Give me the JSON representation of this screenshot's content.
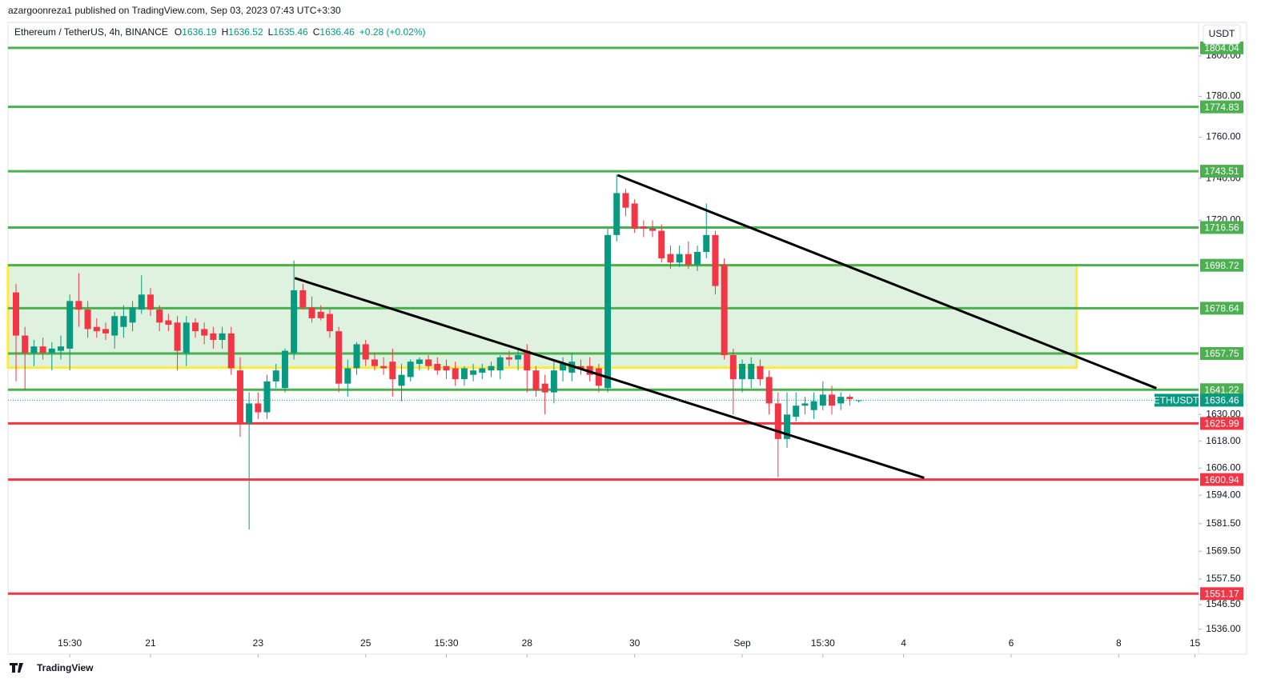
{
  "chart_data": {
    "type": "candlestick",
    "published": "azargoonreza1 published on TradingView.com, Sep 03, 2023 07:43 UTC+3:30",
    "title": "Ethereum / TetherUS, 4h, BINANCE",
    "ohlc_prefixes": [
      "O",
      "H",
      "L",
      "C"
    ],
    "change": "+0.28 (+0.02%)",
    "currency": "USDT",
    "symbol": "ETHUSDT",
    "brand": "TradingView",
    "log_scale": true,
    "grid": false,
    "up_color": "#089981",
    "down_color": "#f23645",
    "xlim": [
      0,
      132.9
    ],
    "ylim": [
      1525.4,
      1816.8
    ],
    "xticks": [
      {
        "value": 7,
        "label": "15:30"
      },
      {
        "value": 16,
        "label": "21"
      },
      {
        "value": 28,
        "label": "23"
      },
      {
        "value": 40,
        "label": "25"
      },
      {
        "value": 49,
        "label": "15:30"
      },
      {
        "value": 58,
        "label": "28"
      },
      {
        "value": 70,
        "label": "30"
      },
      {
        "value": 82,
        "label": "Sep"
      },
      {
        "value": 91,
        "label": "15:30"
      },
      {
        "value": 100,
        "label": "4"
      },
      {
        "value": 112,
        "label": "6"
      },
      {
        "value": 124,
        "label": "8"
      },
      {
        "value": 132.5,
        "label": "15"
      }
    ],
    "yticks": [
      {
        "value": 1800,
        "label": "1800.00"
      },
      {
        "value": 1780,
        "label": "1780.00"
      },
      {
        "value": 1760,
        "label": "1760.00"
      },
      {
        "value": 1740,
        "label": "1740.00"
      },
      {
        "value": 1720,
        "label": "1720.00"
      },
      {
        "value": 1630,
        "label": "1630.00"
      },
      {
        "value": 1618,
        "label": "1618.00"
      },
      {
        "value": 1606,
        "label": "1606.00"
      },
      {
        "value": 1594,
        "label": "1594.00"
      },
      {
        "value": 1581.5,
        "label": "1581.50"
      },
      {
        "value": 1569.5,
        "label": "1569.50"
      },
      {
        "value": 1557.5,
        "label": "1557.50"
      },
      {
        "value": 1546.5,
        "label": "1546.50"
      },
      {
        "value": 1536,
        "label": "1536.00"
      }
    ],
    "levels": [
      {
        "value": 1804.04,
        "color": "#4caf50"
      },
      {
        "value": 1774.83,
        "color": "#4caf50"
      },
      {
        "value": 1743.51,
        "color": "#4caf50"
      },
      {
        "value": 1716.56,
        "color": "#4caf50"
      },
      {
        "value": 1698.72,
        "color": "#4caf50"
      },
      {
        "value": 1678.64,
        "color": "#4caf50"
      },
      {
        "value": 1657.75,
        "color": "#4caf50"
      },
      {
        "value": 1641.22,
        "color": "#4caf50"
      },
      {
        "value": 1625.99,
        "color": "#f23645"
      },
      {
        "value": 1600.94,
        "color": "#f23645"
      },
      {
        "value": 1551.17,
        "color": "#f23645"
      }
    ],
    "box": {
      "x": [
        0.1,
        119.3
      ],
      "y": [
        1651.3,
        1698.72
      ],
      "color": "#ffeb3b"
    },
    "trendlines": [
      {
        "x": [
          68.1,
          128.2
        ],
        "y": [
          1741.6,
          1641.9
        ]
      },
      {
        "x": [
          32.1,
          102.3
        ],
        "y": [
          1692.7,
          1601.7
        ]
      }
    ],
    "x": [
      1,
      2,
      3,
      4,
      5,
      6,
      7,
      8,
      9,
      10,
      11,
      12,
      13,
      14,
      15,
      16,
      17,
      18,
      19,
      20,
      21,
      22,
      23,
      24,
      25,
      26,
      27,
      28,
      29,
      30,
      31,
      32,
      33,
      34,
      35,
      36,
      37,
      38,
      39,
      40,
      41,
      42,
      43,
      44,
      45,
      46,
      47,
      48,
      49,
      50,
      51,
      52,
      53,
      54,
      55,
      56,
      57,
      58,
      59,
      60,
      61,
      62,
      63,
      64,
      65,
      66,
      67,
      68,
      69,
      70,
      71,
      72,
      73,
      74,
      75,
      76,
      77,
      78,
      79,
      80,
      81,
      82,
      83,
      84,
      85,
      86,
      87,
      88,
      89,
      90,
      91,
      92,
      93,
      94,
      95
    ],
    "open": [
      1686,
      1666,
      1658,
      1661,
      1658,
      1659,
      1660,
      1682,
      1678,
      1670,
      1669,
      1666,
      1670,
      1672,
      1678,
      1685,
      1678,
      1673,
      1672,
      1658,
      1672,
      1669,
      1667,
      1664,
      1667,
      1650,
      1626,
      1635,
      1631,
      1645,
      1642,
      1658,
      1687,
      1679,
      1677,
      1676,
      1668,
      1644,
      1651,
      1662,
      1655,
      1652,
      1654,
      1643,
      1647,
      1653,
      1655,
      1653,
      1652,
      1651,
      1646,
      1648,
      1649,
      1650,
      1650,
      1656,
      1655,
      1659,
      1650,
      1644,
      1640,
      1650,
      1649,
      1652,
      1652,
      1651,
      1642,
      1713,
      1733,
      1728,
      1717,
      1716,
      1715,
      1704,
      1700,
      1704,
      1699,
      1705,
      1713,
      1699,
      1657,
      1646,
      1646,
      1652,
      1647,
      1635,
      1619,
      1629,
      1634,
      1632,
      1634,
      1639,
      1635,
      1638,
      1636.19
    ],
    "high": [
      1690,
      1670,
      1664,
      1665,
      1663,
      1666,
      1685,
      1695,
      1682,
      1674,
      1672,
      1677,
      1680,
      1682,
      1694,
      1688,
      1680,
      1676,
      1675,
      1675,
      1674,
      1672,
      1670,
      1670,
      1670,
      1656,
      1640,
      1640,
      1648,
      1653,
      1660,
      1701,
      1690,
      1684,
      1680,
      1678,
      1670,
      1655,
      1663,
      1664,
      1658,
      1656,
      1660,
      1653,
      1655,
      1656,
      1657,
      1656,
      1655,
      1654,
      1652,
      1653,
      1653,
      1654,
      1657,
      1659,
      1660,
      1662,
      1652,
      1648,
      1655,
      1656,
      1658,
      1655,
      1656,
      1653,
      1716,
      1742,
      1735,
      1730,
      1720,
      1720,
      1718,
      1708,
      1708,
      1710,
      1708,
      1728,
      1715,
      1702,
      1660,
      1655,
      1656,
      1655,
      1650,
      1640,
      1640,
      1640,
      1638,
      1640,
      1645,
      1643,
      1640,
      1639,
      1636.52
    ],
    "low": [
      1645,
      1641,
      1652,
      1655,
      1650,
      1655,
      1650,
      1670,
      1665,
      1665,
      1664,
      1660,
      1665,
      1668,
      1676,
      1675,
      1668,
      1668,
      1650,
      1652,
      1665,
      1662,
      1660,
      1660,
      1648,
      1620,
      1579,
      1628,
      1628,
      1642,
      1640,
      1655,
      1678,
      1672,
      1673,
      1665,
      1640,
      1638,
      1648,
      1652,
      1650,
      1648,
      1638,
      1636,
      1645,
      1650,
      1650,
      1648,
      1646,
      1643,
      1643,
      1645,
      1646,
      1647,
      1646,
      1652,
      1650,
      1640,
      1638,
      1630,
      1635,
      1645,
      1645,
      1648,
      1645,
      1640,
      1640,
      1710,
      1722,
      1714,
      1712,
      1712,
      1700,
      1697,
      1698,
      1697,
      1696,
      1702,
      1685,
      1655,
      1630,
      1640,
      1642,
      1643,
      1630,
      1602,
      1615,
      1627,
      1630,
      1628,
      1632,
      1630,
      1632,
      1634,
      1635.46
    ],
    "close": [
      1666,
      1658,
      1661,
      1658,
      1660,
      1661,
      1682,
      1678,
      1669,
      1668,
      1667,
      1675,
      1675,
      1679,
      1685,
      1678,
      1672,
      1671,
      1659,
      1672,
      1668,
      1666,
      1664,
      1667,
      1651,
      1626,
      1635,
      1631,
      1645,
      1650,
      1659,
      1687,
      1679,
      1674,
      1674,
      1668,
      1644,
      1651,
      1662,
      1655,
      1652,
      1651,
      1646,
      1648,
      1654,
      1655,
      1652,
      1650,
      1650,
      1646,
      1651,
      1650,
      1651,
      1652,
      1656,
      1655,
      1657,
      1650,
      1641,
      1640,
      1650,
      1653,
      1654,
      1651,
      1648,
      1643,
      1713,
      1733,
      1726,
      1716,
      1716,
      1715,
      1702,
      1700,
      1704,
      1699,
      1705,
      1713,
      1689,
      1657,
      1646,
      1653,
      1653,
      1646,
      1635,
      1619,
      1630,
      1634,
      1635,
      1636,
      1639,
      1634,
      1638,
      1637,
      1636.46
    ]
  }
}
